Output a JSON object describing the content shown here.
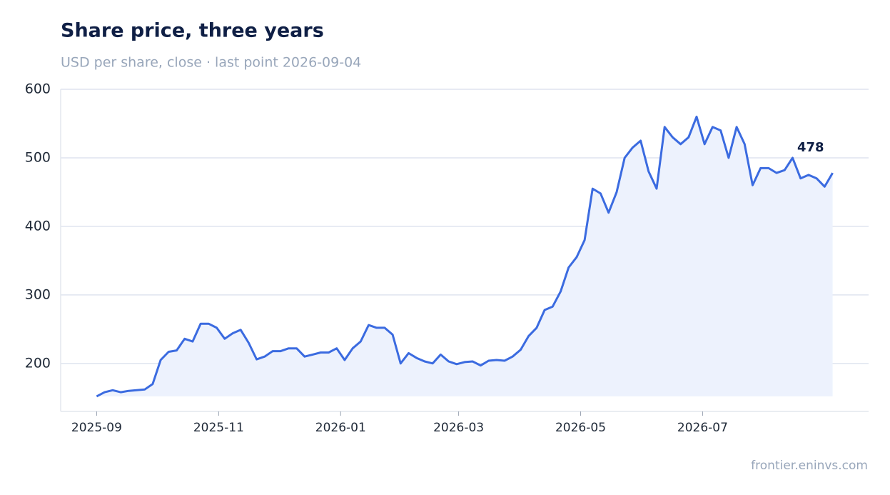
{
  "chart_data": {
    "type": "line",
    "title": "Share price, three years",
    "subtitle": "USD per share, close · last point 2026-09-04",
    "source": "frontier.eninvs.com",
    "x": [
      "2025-09-01",
      "2025-09-05",
      "2025-09-09",
      "2025-09-13",
      "2025-09-17",
      "2025-09-21",
      "2025-09-25",
      "2025-09-29",
      "2025-10-03",
      "2025-10-07",
      "2025-10-11",
      "2025-10-15",
      "2025-10-19",
      "2025-10-23",
      "2025-10-27",
      "2025-10-31",
      "2025-11-04",
      "2025-11-08",
      "2025-11-12",
      "2025-11-16",
      "2025-11-20",
      "2025-11-24",
      "2025-11-28",
      "2025-12-02",
      "2025-12-06",
      "2025-12-10",
      "2025-12-14",
      "2025-12-18",
      "2025-12-22",
      "2025-12-26",
      "2025-12-30",
      "2026-01-03",
      "2026-01-07",
      "2026-01-11",
      "2026-01-15",
      "2026-01-19",
      "2026-01-23",
      "2026-01-27",
      "2026-01-31",
      "2026-02-04",
      "2026-02-08",
      "2026-02-12",
      "2026-02-16",
      "2026-02-20",
      "2026-02-24",
      "2026-02-28",
      "2026-03-04",
      "2026-03-08",
      "2026-03-12",
      "2026-03-16",
      "2026-03-20",
      "2026-03-24",
      "2026-03-28",
      "2026-04-01",
      "2026-04-05",
      "2026-04-09",
      "2026-04-13",
      "2026-04-17",
      "2026-04-21",
      "2026-04-25",
      "2026-04-29",
      "2026-05-03",
      "2026-05-07",
      "2026-05-11",
      "2026-05-15",
      "2026-05-19",
      "2026-05-23",
      "2026-05-27",
      "2026-05-31",
      "2026-06-04",
      "2026-06-08",
      "2026-06-12",
      "2026-06-16",
      "2026-06-20",
      "2026-06-24",
      "2026-06-28",
      "2026-07-02",
      "2026-07-06",
      "2026-07-10",
      "2026-07-14",
      "2026-07-18",
      "2026-07-22",
      "2026-07-26",
      "2026-07-30",
      "2026-08-03",
      "2026-08-07",
      "2026-08-11",
      "2026-08-15",
      "2026-08-19",
      "2026-08-23",
      "2026-08-27",
      "2026-08-31",
      "2026-09-04"
    ],
    "values": [
      152,
      158,
      161,
      158,
      160,
      161,
      162,
      170,
      205,
      217,
      219,
      236,
      232,
      258,
      258,
      252,
      236,
      244,
      249,
      230,
      206,
      210,
      218,
      218,
      222,
      222,
      210,
      213,
      216,
      216,
      222,
      205,
      222,
      232,
      256,
      252,
      252,
      242,
      200,
      215,
      208,
      203,
      200,
      213,
      203,
      199,
      202,
      203,
      197,
      204,
      205,
      204,
      210,
      220,
      240,
      252,
      278,
      283,
      305,
      340,
      355,
      380,
      455,
      448,
      420,
      450,
      500,
      515,
      525,
      480,
      455,
      545,
      530,
      520,
      530,
      560,
      520,
      545,
      540,
      500,
      545,
      520,
      460,
      485,
      485,
      478,
      482,
      500,
      470,
      475,
      470,
      458,
      478
    ],
    "color": "#3b6be0",
    "area_color": "#edf2fd",
    "xlim": [
      "2025-08-14",
      "2026-09-22"
    ],
    "xticks": [
      {
        "value": "2025-09-01",
        "label": "2025-09"
      },
      {
        "value": "2025-11-01",
        "label": "2025-11"
      },
      {
        "value": "2026-01-01",
        "label": "2026-01"
      },
      {
        "value": "2026-03-01",
        "label": "2026-03"
      },
      {
        "value": "2026-05-01",
        "label": "2026-05"
      },
      {
        "value": "2026-07-01",
        "label": "2026-07"
      }
    ],
    "ylim": [
      130,
      600
    ],
    "yticks": [
      200,
      300,
      400,
      500,
      600
    ],
    "grid": true
  }
}
